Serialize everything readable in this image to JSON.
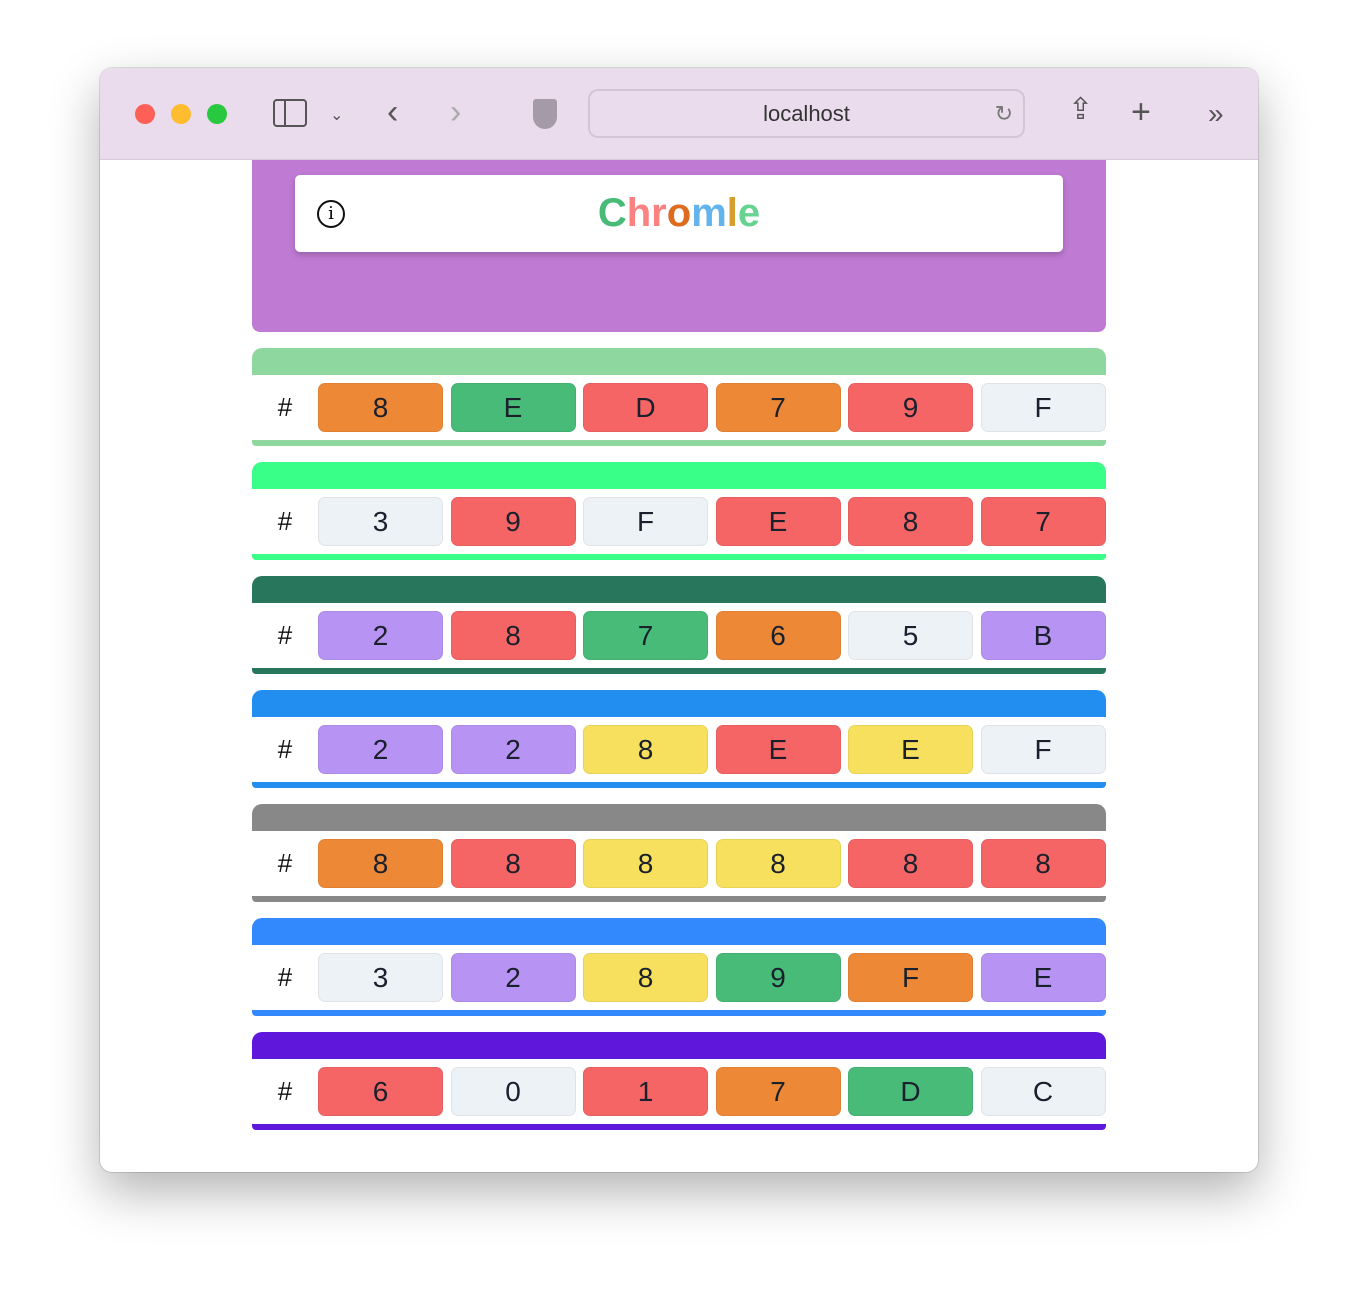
{
  "browser": {
    "url": "localhost"
  },
  "app": {
    "title_letters": [
      {
        "ch": "C",
        "color": "#48bb78"
      },
      {
        "ch": "h",
        "color": "#fc8181"
      },
      {
        "ch": "r",
        "color": "#fc8181"
      },
      {
        "ch": "o",
        "color": "#dd6b20"
      },
      {
        "ch": "m",
        "color": "#63b3ed"
      },
      {
        "ch": "l",
        "color": "#d69e2e"
      },
      {
        "ch": "e",
        "color": "#68d391"
      }
    ],
    "header_color": "#bf7ad3"
  },
  "palette": {
    "orange": "#ed8936",
    "green": "#48bb78",
    "red": "#f56565",
    "gray": "#edf2f7",
    "purple": "#b794f4",
    "yellow": "#f6e05e"
  },
  "guesses": [
    {
      "color": "#8ED79F",
      "cells": [
        [
          "8",
          "orange"
        ],
        [
          "E",
          "green"
        ],
        [
          "D",
          "red"
        ],
        [
          "7",
          "orange"
        ],
        [
          "9",
          "red"
        ],
        [
          "F",
          "gray"
        ]
      ]
    },
    {
      "color": "#39FE87",
      "cells": [
        [
          "3",
          "gray"
        ],
        [
          "9",
          "red"
        ],
        [
          "F",
          "gray"
        ],
        [
          "E",
          "red"
        ],
        [
          "8",
          "red"
        ],
        [
          "7",
          "red"
        ]
      ]
    },
    {
      "color": "#28765B",
      "cells": [
        [
          "2",
          "purple"
        ],
        [
          "8",
          "red"
        ],
        [
          "7",
          "green"
        ],
        [
          "6",
          "orange"
        ],
        [
          "5",
          "gray"
        ],
        [
          "B",
          "purple"
        ]
      ]
    },
    {
      "color": "#228EEF",
      "cells": [
        [
          "2",
          "purple"
        ],
        [
          "2",
          "purple"
        ],
        [
          "8",
          "yellow"
        ],
        [
          "E",
          "red"
        ],
        [
          "E",
          "yellow"
        ],
        [
          "F",
          "gray"
        ]
      ]
    },
    {
      "color": "#888888",
      "cells": [
        [
          "8",
          "orange"
        ],
        [
          "8",
          "red"
        ],
        [
          "8",
          "yellow"
        ],
        [
          "8",
          "yellow"
        ],
        [
          "8",
          "red"
        ],
        [
          "8",
          "red"
        ]
      ]
    },
    {
      "color": "#3289FE",
      "cells": [
        [
          "3",
          "gray"
        ],
        [
          "2",
          "purple"
        ],
        [
          "8",
          "yellow"
        ],
        [
          "9",
          "green"
        ],
        [
          "F",
          "orange"
        ],
        [
          "E",
          "purple"
        ]
      ]
    },
    {
      "color": "#6017DC",
      "cells": [
        [
          "6",
          "red"
        ],
        [
          "0",
          "gray"
        ],
        [
          "1",
          "red"
        ],
        [
          "7",
          "orange"
        ],
        [
          "D",
          "green"
        ],
        [
          "C",
          "gray"
        ]
      ]
    }
  ],
  "hash_symbol": "#"
}
